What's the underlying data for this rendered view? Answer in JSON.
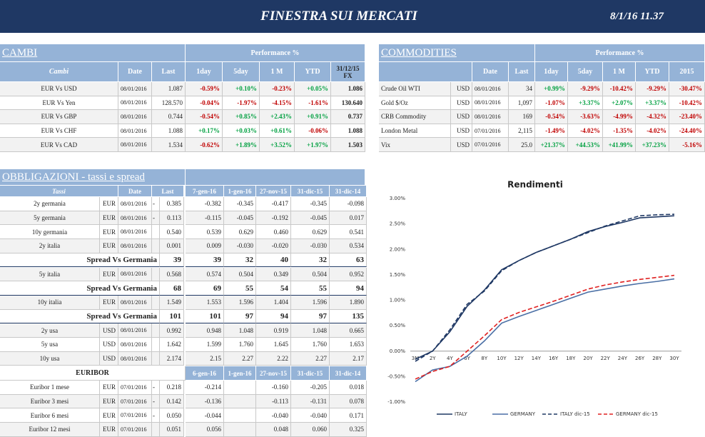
{
  "header": {
    "title": "FINESTRA SUI MERCATI",
    "date": "8/1/16 11.37"
  },
  "cambi": {
    "title": "CAMBI",
    "group": "Performance %",
    "columns": [
      "Cambi",
      "Date",
      "Last",
      "1day",
      "5day",
      "1 M",
      "YTD",
      "31/12/15 FX"
    ],
    "rows": [
      [
        "EUR Vs USD",
        "08/01/2016",
        "1.087",
        "-0.59%",
        "+0.10%",
        "-0.23%",
        "+0.05%",
        "1.086"
      ],
      [
        "EUR Vs Yen",
        "08/01/2016",
        "128.570",
        "-0.04%",
        "-1.97%",
        "-4.15%",
        "-1.61%",
        "130.640"
      ],
      [
        "EUR Vs GBP",
        "08/01/2016",
        "0.744",
        "-0.54%",
        "+0.85%",
        "+2.43%",
        "+0.91%",
        "0.737"
      ],
      [
        "EUR Vs CHF",
        "08/01/2016",
        "1.088",
        "+0.17%",
        "+0.03%",
        "+0.61%",
        "-0.06%",
        "1.088"
      ],
      [
        "EUR Vs CAD",
        "08/01/2016",
        "1.534",
        "-0.62%",
        "+1.89%",
        "+3.52%",
        "+1.97%",
        "1.503"
      ]
    ]
  },
  "commodities": {
    "title": "COMMODITIES",
    "group": "Performance %",
    "columns": [
      "Date",
      "Last",
      "1day",
      "5day",
      "1 M",
      "YTD",
      "2015"
    ],
    "rows": [
      [
        "Crude Oil WTI",
        "USD",
        "08/01/2016",
        "34",
        "+0.99%",
        "-9.29%",
        "-10.42%",
        "-9.29%",
        "-30.47%"
      ],
      [
        "Gold $/Oz",
        "USD",
        "08/01/2016",
        "1,097",
        "-1.07%",
        "+3.37%",
        "+2.07%",
        "+3.37%",
        "-10.42%"
      ],
      [
        "CRB Commodity",
        "USD",
        "08/01/2016",
        "169",
        "-0.54%",
        "-3.63%",
        "-4.99%",
        "-4.32%",
        "-23.40%"
      ],
      [
        "London Metal",
        "USD",
        "07/01/2016",
        "2,115",
        "-1.49%",
        "-4.02%",
        "-1.35%",
        "-4.02%",
        "-24.40%"
      ],
      [
        "Vix",
        "USD",
        "07/01/2016",
        "25.0",
        "+21.37%",
        "+44.53%",
        "+41.99%",
        "+37.23%",
        "-5.16%"
      ]
    ]
  },
  "obbligazioni": {
    "title": "OBBLIGAZIONI - tassi e spread",
    "columns": [
      "Tassi",
      "Date",
      "Last",
      "7-gen-16",
      "1-gen-16",
      "27-nov-15",
      "31-dic-15",
      "31-dic-14"
    ],
    "rows": [
      [
        "2y germania",
        "EUR",
        "08/01/2016",
        "-",
        "0.385",
        "-0.382",
        "-0.345",
        "-0.417",
        "-0.345",
        "-0.098"
      ],
      [
        "5y germania",
        "EUR",
        "08/01/2016",
        "-",
        "0.113",
        "-0.115",
        "-0.045",
        "-0.192",
        "-0.045",
        "0.017"
      ],
      [
        "10y germania",
        "EUR",
        "08/01/2016",
        null,
        "0.540",
        "0.539",
        "0.629",
        "0.460",
        "0.629",
        "0.541"
      ],
      [
        "2y italia",
        "EUR",
        "08/01/2016",
        null,
        "0.001",
        "0.009",
        "-0.030",
        "-0.020",
        "-0.030",
        "0.534"
      ],
      [
        "Spread Vs Germania",
        null,
        null,
        null,
        "39",
        "39",
        "32",
        "40",
        "32",
        "63"
      ],
      [
        "5y italia",
        "EUR",
        "08/01/2016",
        null,
        "0.568",
        "0.574",
        "0.504",
        "0.349",
        "0.504",
        "0.952"
      ],
      [
        "Spread Vs Germania",
        null,
        null,
        null,
        "68",
        "69",
        "55",
        "54",
        "55",
        "94"
      ],
      [
        "10y italia",
        "EUR",
        "08/01/2016",
        null,
        "1.549",
        "1.553",
        "1.596",
        "1.404",
        "1.596",
        "1.890"
      ],
      [
        "Spread Vs Germania",
        null,
        null,
        null,
        "101",
        "101",
        "97",
        "94",
        "97",
        "135"
      ],
      [
        "2y usa",
        "USD",
        "08/01/2016",
        null,
        "0.992",
        "0.948",
        "1.048",
        "0.919",
        "1.048",
        "0.665"
      ],
      [
        "5y usa",
        "USD",
        "08/01/2016",
        null,
        "1.642",
        "1.599",
        "1.760",
        "1.645",
        "1.760",
        "1.653"
      ],
      [
        "10y usa",
        "USD",
        "08/01/2016",
        null,
        "2.174",
        "2.15",
        "2.27",
        "2.22",
        "2.27",
        "2.17"
      ]
    ]
  },
  "euribor": {
    "title": "EURIBOR",
    "columns": [
      "6-gen-16",
      "1-gen-16",
      "27-nov-15",
      "31-dic-15",
      "31-dic-14"
    ],
    "rows": [
      [
        "Euribor 1 mese",
        "EUR",
        "07/01/2016",
        "-",
        "0.218",
        "-0.214",
        null,
        "-0.160",
        "-0.205",
        "0.018"
      ],
      [
        "Euribor 3 mesi",
        "EUR",
        "07/01/2016",
        "-",
        "0.142",
        "-0.136",
        null,
        "-0.113",
        "-0.131",
        "0.078"
      ],
      [
        "Euribor 6 mesi",
        "EUR",
        "07/01/2016",
        "-",
        "0.050",
        "-0.044",
        null,
        "-0.040",
        "-0.040",
        "0.171"
      ],
      [
        "Euribor 12 mesi",
        "EUR",
        "07/01/2016",
        null,
        "0.051",
        "0.056",
        null,
        "0.048",
        "0.060",
        "0.325"
      ]
    ]
  },
  "chart_data": {
    "type": "line",
    "title": "Rendimenti",
    "categories": [
      "3M",
      "2Y",
      "4Y",
      "6Y",
      "8Y",
      "10Y",
      "12Y",
      "14Y",
      "16Y",
      "18Y",
      "20Y",
      "22Y",
      "24Y",
      "26Y",
      "28Y",
      "30Y"
    ],
    "series": [
      {
        "name": "ITALY",
        "color": "#1f3864",
        "dash": false,
        "values": [
          -0.16,
          0.0,
          0.38,
          0.88,
          1.2,
          1.6,
          1.78,
          1.94,
          2.07,
          2.2,
          2.35,
          2.45,
          2.53,
          2.62,
          2.64,
          2.66
        ]
      },
      {
        "name": "GERMANY",
        "color": "#4a6fa5",
        "dash": false,
        "values": [
          -0.6,
          -0.37,
          -0.3,
          -0.1,
          0.2,
          0.55,
          0.68,
          0.8,
          0.92,
          1.04,
          1.16,
          1.22,
          1.28,
          1.33,
          1.37,
          1.42
        ]
      },
      {
        "name": "ITALY dic-15",
        "color": "#1f3864",
        "dash": true,
        "values": [
          -0.2,
          0.0,
          0.42,
          0.92,
          1.18,
          1.58,
          1.78,
          1.94,
          2.07,
          2.2,
          2.33,
          2.46,
          2.56,
          2.66,
          2.68,
          2.69
        ]
      },
      {
        "name": "GERMANY dic-15",
        "color": "#e02020",
        "dash": true,
        "values": [
          -0.55,
          -0.4,
          -0.3,
          0.0,
          0.3,
          0.62,
          0.76,
          0.87,
          0.98,
          1.1,
          1.22,
          1.3,
          1.36,
          1.41,
          1.45,
          1.49
        ]
      }
    ],
    "ylim": [
      -1,
      3
    ],
    "yticks": [
      {
        "value": -1,
        "label": "-1.00%"
      },
      {
        "value": -0.5,
        "label": "-0.50%"
      },
      {
        "value": 0,
        "label": "0.00%"
      },
      {
        "value": 0.5,
        "label": "0.50%"
      },
      {
        "value": 1,
        "label": "1.00%"
      },
      {
        "value": 1.5,
        "label": "1.50%"
      },
      {
        "value": 2,
        "label": "2.00%"
      },
      {
        "value": 2.5,
        "label": "2.50%"
      },
      {
        "value": 3,
        "label": "3.00%"
      }
    ],
    "grid": false,
    "legend": "bottom"
  }
}
